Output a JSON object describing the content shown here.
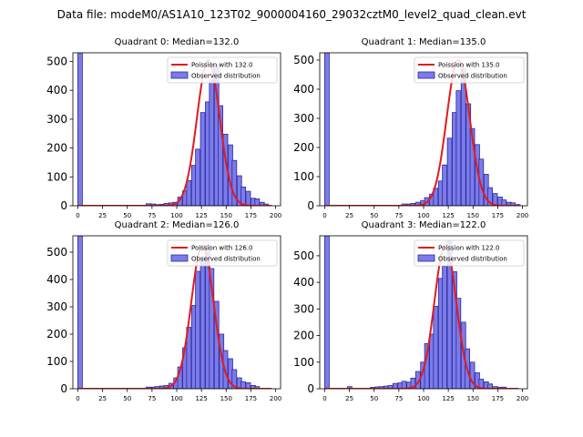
{
  "suptitle": "Data file: modeM0/AS1A10_123T02_9000004160_29032cztM0_level2_quad_clean.evt",
  "colors": {
    "bar_fill": "#7b7be9",
    "bar_edge": "#2b2b9e",
    "fit_line": "#e31a1c"
  },
  "chart_data": [
    {
      "type": "bar",
      "title": "Quadrant 0: Median=132.0",
      "median": 132,
      "xlim": [
        -5,
        205
      ],
      "ylim": [
        0,
        530
      ],
      "xticks": [
        0,
        25,
        50,
        75,
        100,
        125,
        150,
        175,
        200
      ],
      "yticks": [
        0,
        100,
        200,
        300,
        400,
        500
      ],
      "bin_width": 4.6,
      "bins": [
        [
          0,
          530
        ],
        [
          69,
          7
        ],
        [
          74,
          6
        ],
        [
          78,
          4
        ],
        [
          83,
          5
        ],
        [
          87,
          8
        ],
        [
          92,
          10
        ],
        [
          96,
          12
        ],
        [
          101,
          30
        ],
        [
          106,
          52
        ],
        [
          110,
          87
        ],
        [
          115,
          140
        ],
        [
          119,
          196
        ],
        [
          124,
          323
        ],
        [
          129,
          360
        ],
        [
          133,
          436
        ],
        [
          138,
          486
        ],
        [
          142,
          347
        ],
        [
          147,
          248
        ],
        [
          152,
          211
        ],
        [
          156,
          157
        ],
        [
          161,
          104
        ],
        [
          165,
          65
        ],
        [
          170,
          50
        ],
        [
          175,
          26
        ],
        [
          179,
          24
        ],
        [
          184,
          12
        ],
        [
          188,
          6
        ]
      ],
      "fit": {
        "label": "Poission with 132.0",
        "mean": 132,
        "peak": 505,
        "x_range": [
          0,
          196
        ]
      },
      "legend": {
        "fit": "Poission with 132.0",
        "hist": "Observed distribution"
      }
    },
    {
      "type": "bar",
      "title": "Quadrant 1: Median=135.0",
      "median": 135,
      "xlim": [
        -5,
        205
      ],
      "ylim": [
        0,
        525
      ],
      "xticks": [
        0,
        25,
        50,
        75,
        100,
        125,
        150,
        175,
        200
      ],
      "yticks": [
        0,
        100,
        200,
        300,
        400,
        500
      ],
      "bin_width": 4.6,
      "bins": [
        [
          0,
          525
        ],
        [
          78,
          6
        ],
        [
          83,
          6
        ],
        [
          87,
          8
        ],
        [
          92,
          12
        ],
        [
          97,
          18
        ],
        [
          101,
          28
        ],
        [
          106,
          40
        ],
        [
          110,
          60
        ],
        [
          115,
          85
        ],
        [
          119,
          140
        ],
        [
          124,
          232
        ],
        [
          129,
          320
        ],
        [
          133,
          395
        ],
        [
          138,
          470
        ],
        [
          143,
          350
        ],
        [
          147,
          265
        ],
        [
          152,
          210
        ],
        [
          156,
          160
        ],
        [
          161,
          108
        ],
        [
          165,
          62
        ],
        [
          170,
          42
        ],
        [
          175,
          30
        ],
        [
          179,
          20
        ],
        [
          184,
          12
        ],
        [
          188,
          10
        ],
        [
          193,
          4
        ]
      ],
      "fit": {
        "label": "Poission with 135.0",
        "mean": 135,
        "peak": 500,
        "x_range": [
          0,
          196
        ]
      },
      "legend": {
        "fit": "Poission with 135.0",
        "hist": "Observed distribution"
      }
    },
    {
      "type": "bar",
      "title": "Quadrant 2: Median=126.0",
      "median": 126,
      "xlim": [
        -5,
        205
      ],
      "ylim": [
        0,
        560
      ],
      "xticks": [
        0,
        25,
        50,
        75,
        100,
        125,
        150,
        175,
        200
      ],
      "yticks": [
        0,
        100,
        200,
        300,
        400,
        500
      ],
      "bin_width": 4.6,
      "bins": [
        [
          0,
          560
        ],
        [
          69,
          6
        ],
        [
          74,
          6
        ],
        [
          78,
          8
        ],
        [
          83,
          10
        ],
        [
          87,
          12
        ],
        [
          92,
          20
        ],
        [
          97,
          40
        ],
        [
          101,
          80
        ],
        [
          106,
          150
        ],
        [
          110,
          225
        ],
        [
          115,
          305
        ],
        [
          119,
          430
        ],
        [
          124,
          480
        ],
        [
          129,
          525
        ],
        [
          133,
          440
        ],
        [
          138,
          320
        ],
        [
          143,
          200
        ],
        [
          147,
          140
        ],
        [
          152,
          110
        ],
        [
          156,
          70
        ],
        [
          161,
          40
        ],
        [
          165,
          26
        ],
        [
          170,
          22
        ],
        [
          175,
          12
        ],
        [
          179,
          8
        ]
      ],
      "fit": {
        "label": "Poission with 126.0",
        "mean": 126,
        "peak": 525,
        "x_range": [
          0,
          196
        ]
      },
      "legend": {
        "fit": "Poission with 126.0",
        "hist": "Observed distribution"
      }
    },
    {
      "type": "bar",
      "title": "Quadrant 3: Median=122.0",
      "median": 122,
      "xlim": [
        -5,
        205
      ],
      "ylim": [
        0,
        575
      ],
      "xticks": [
        0,
        25,
        50,
        75,
        100,
        125,
        150,
        175,
        200
      ],
      "yticks": [
        0,
        100,
        200,
        300,
        400,
        500
      ],
      "bin_width": 4.6,
      "bins": [
        [
          0,
          575
        ],
        [
          23,
          8
        ],
        [
          46,
          5
        ],
        [
          51,
          7
        ],
        [
          55,
          8
        ],
        [
          60,
          10
        ],
        [
          64,
          12
        ],
        [
          69,
          20
        ],
        [
          74,
          22
        ],
        [
          78,
          28
        ],
        [
          83,
          25
        ],
        [
          87,
          40
        ],
        [
          92,
          65
        ],
        [
          97,
          100
        ],
        [
          101,
          170
        ],
        [
          106,
          205
        ],
        [
          110,
          310
        ],
        [
          115,
          415
        ],
        [
          119,
          460
        ],
        [
          124,
          555
        ],
        [
          129,
          440
        ],
        [
          133,
          340
        ],
        [
          138,
          250
        ],
        [
          142,
          150
        ],
        [
          147,
          100
        ],
        [
          152,
          60
        ],
        [
          156,
          36
        ],
        [
          161,
          26
        ],
        [
          165,
          18
        ],
        [
          170,
          8
        ],
        [
          175,
          6
        ],
        [
          179,
          6
        ]
      ],
      "fit": {
        "label": "Poission with 122.0",
        "mean": 122,
        "peak": 540,
        "x_range": [
          0,
          196
        ]
      },
      "legend": {
        "fit": "Poission with 122.0",
        "hist": "Observed distribution"
      }
    }
  ]
}
